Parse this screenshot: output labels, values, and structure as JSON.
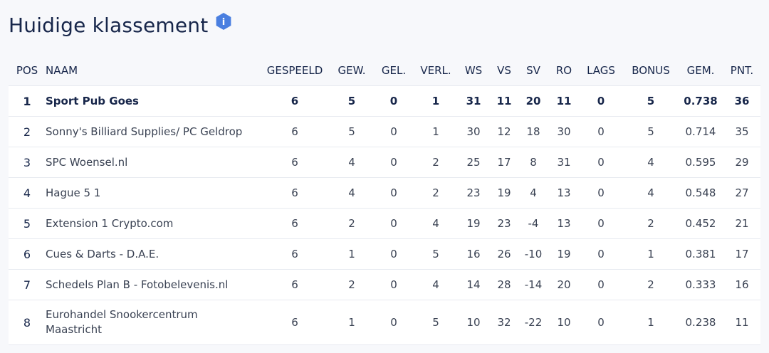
{
  "title": "Huidige klassement",
  "info_icon_label": "i",
  "accent_color": "#4a7fe0",
  "headers": {
    "pos": "POS",
    "naam": "NAAM",
    "gespeeld": "GESPEELD",
    "gew": "GEW.",
    "gel": "GEL.",
    "verl": "VERL.",
    "ws": "WS",
    "vs": "VS",
    "sv": "SV",
    "ro": "RO",
    "lags": "LAGS",
    "bonus": "BONUS",
    "gem": "GEM.",
    "pnt": "PNT."
  },
  "rows": [
    {
      "pos": "1",
      "naam": "Sport Pub Goes",
      "gespeeld": "6",
      "gew": "5",
      "gel": "0",
      "verl": "1",
      "ws": "31",
      "vs": "11",
      "sv": "20",
      "ro": "11",
      "lags": "0",
      "bonus": "5",
      "gem": "0.738",
      "pnt": "36"
    },
    {
      "pos": "2",
      "naam": "Sonny's Billiard Supplies/ PC Geldrop",
      "gespeeld": "6",
      "gew": "5",
      "gel": "0",
      "verl": "1",
      "ws": "30",
      "vs": "12",
      "sv": "18",
      "ro": "30",
      "lags": "0",
      "bonus": "5",
      "gem": "0.714",
      "pnt": "35"
    },
    {
      "pos": "3",
      "naam": "SPC Woensel.nl",
      "gespeeld": "6",
      "gew": "4",
      "gel": "0",
      "verl": "2",
      "ws": "25",
      "vs": "17",
      "sv": "8",
      "ro": "31",
      "lags": "0",
      "bonus": "4",
      "gem": "0.595",
      "pnt": "29"
    },
    {
      "pos": "4",
      "naam": "Hague 5 1",
      "gespeeld": "6",
      "gew": "4",
      "gel": "0",
      "verl": "2",
      "ws": "23",
      "vs": "19",
      "sv": "4",
      "ro": "13",
      "lags": "0",
      "bonus": "4",
      "gem": "0.548",
      "pnt": "27"
    },
    {
      "pos": "5",
      "naam": "Extension 1 Crypto.com",
      "gespeeld": "6",
      "gew": "2",
      "gel": "0",
      "verl": "4",
      "ws": "19",
      "vs": "23",
      "sv": "-4",
      "ro": "13",
      "lags": "0",
      "bonus": "2",
      "gem": "0.452",
      "pnt": "21"
    },
    {
      "pos": "6",
      "naam": "Cues & Darts - D.A.E.",
      "gespeeld": "6",
      "gew": "1",
      "gel": "0",
      "verl": "5",
      "ws": "16",
      "vs": "26",
      "sv": "-10",
      "ro": "19",
      "lags": "0",
      "bonus": "1",
      "gem": "0.381",
      "pnt": "17"
    },
    {
      "pos": "7",
      "naam": "Schedels Plan B - Fotobelevenis.nl",
      "gespeeld": "6",
      "gew": "2",
      "gel": "0",
      "verl": "4",
      "ws": "14",
      "vs": "28",
      "sv": "-14",
      "ro": "20",
      "lags": "0",
      "bonus": "2",
      "gem": "0.333",
      "pnt": "16"
    },
    {
      "pos": "8",
      "naam": "Eurohandel Snookercentrum Maastricht",
      "gespeeld": "6",
      "gew": "1",
      "gel": "0",
      "verl": "5",
      "ws": "10",
      "vs": "32",
      "sv": "-22",
      "ro": "10",
      "lags": "0",
      "bonus": "1",
      "gem": "0.238",
      "pnt": "11"
    }
  ]
}
